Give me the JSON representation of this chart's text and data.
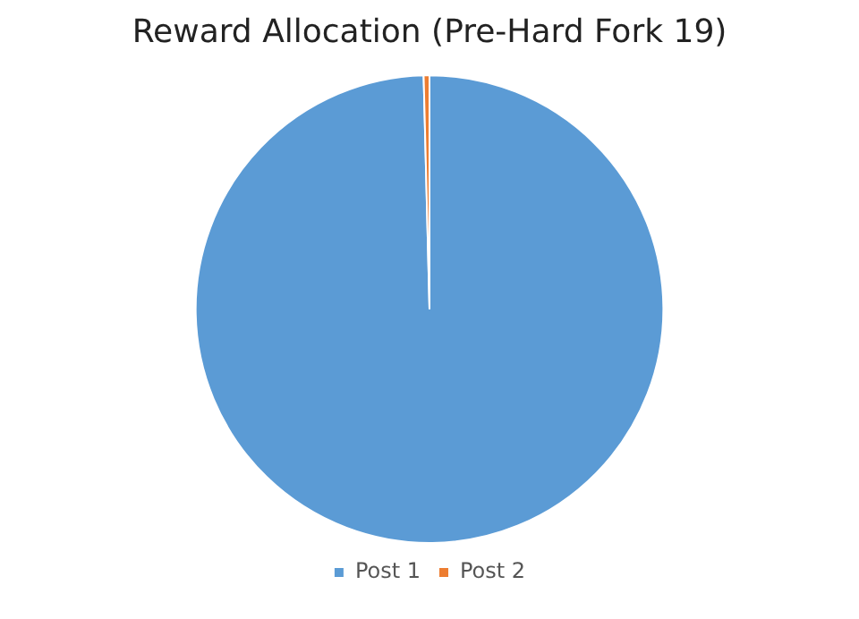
{
  "chart_data": {
    "type": "pie",
    "title": "Reward Allocation (Pre-Hard Fork 19)",
    "categories": [
      "Post 1",
      "Post 2"
    ],
    "values": [
      99.6,
      0.4
    ],
    "colors": [
      "#5b9bd5",
      "#ed7d31"
    ],
    "legend": "bottom"
  }
}
